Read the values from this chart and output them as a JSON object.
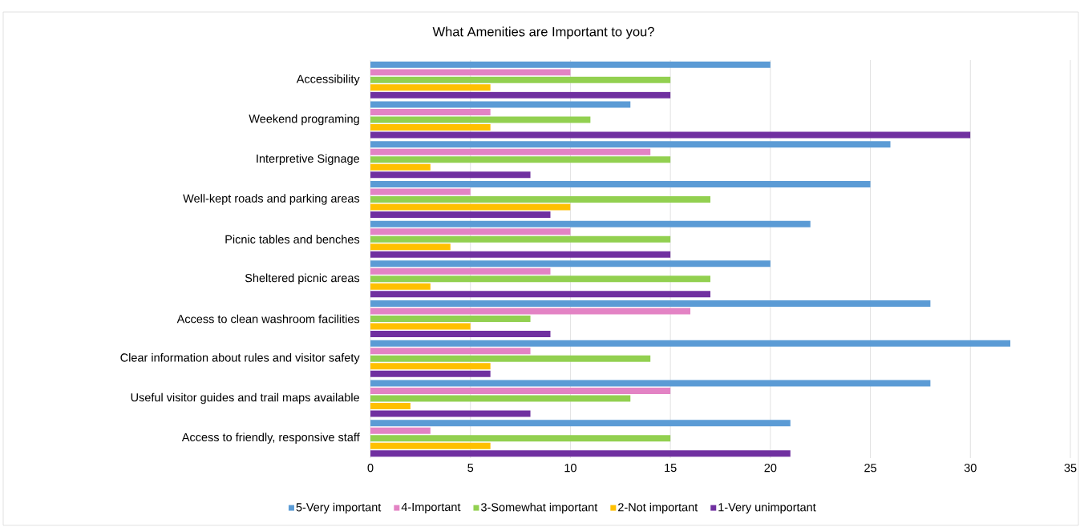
{
  "chart_data": {
    "type": "bar",
    "orientation": "horizontal",
    "title": "What Amenities are Important to you?",
    "categories": [
      "Accessibility",
      "Weekend programing",
      "Interpretive Signage",
      "Well-kept roads and parking areas",
      "Picnic tables and benches",
      "Sheltered picnic areas",
      "Access to clean washroom facilities",
      "Clear information about rules and visitor safety",
      "Useful visitor guides and trail maps available",
      "Access to friendly, responsive staff"
    ],
    "series": [
      {
        "name": "5-Very important",
        "color": "#5b9bd5",
        "values": [
          20,
          13,
          26,
          25,
          22,
          20,
          28,
          32,
          28,
          21
        ]
      },
      {
        "name": "4-Important",
        "color": "#e383c4",
        "values": [
          10,
          6,
          14,
          5,
          10,
          9,
          16,
          8,
          15,
          3
        ]
      },
      {
        "name": "3-Somewhat important",
        "color": "#92d050",
        "values": [
          15,
          11,
          15,
          17,
          15,
          17,
          8,
          14,
          13,
          15
        ]
      },
      {
        "name": "2-Not important",
        "color": "#ffc000",
        "values": [
          6,
          6,
          3,
          10,
          4,
          3,
          5,
          6,
          2,
          6
        ]
      },
      {
        "name": "1-Very unimportant",
        "color": "#7030a0",
        "values": [
          15,
          30,
          8,
          9,
          15,
          17,
          9,
          6,
          8,
          21
        ]
      }
    ],
    "xlim": [
      0,
      35
    ],
    "xticks": [
      0,
      5,
      10,
      15,
      20,
      25,
      30,
      35
    ],
    "grid": "x",
    "legend": "bottom"
  }
}
